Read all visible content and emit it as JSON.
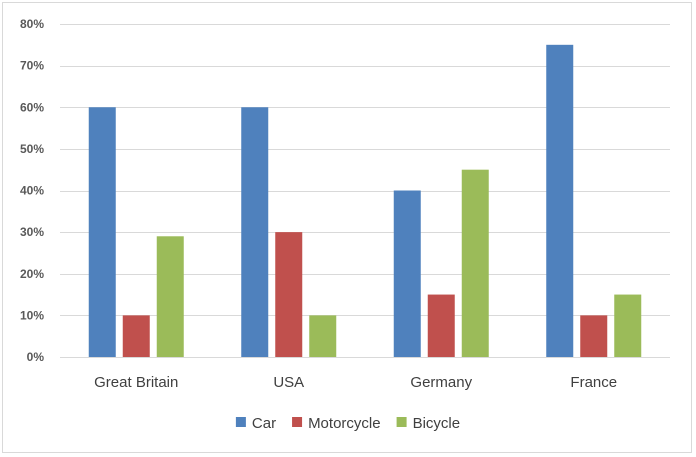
{
  "chart_data": {
    "type": "bar",
    "title": "",
    "xlabel": "",
    "ylabel": "",
    "ylim": [
      0,
      80
    ],
    "yticks": [
      0,
      10,
      20,
      30,
      40,
      50,
      60,
      70,
      80
    ],
    "ytick_labels": [
      "0%",
      "10%",
      "20%",
      "30%",
      "40%",
      "50%",
      "60%",
      "70%",
      "80%"
    ],
    "grid": true,
    "legend_position": "bottom",
    "categories": [
      "Great Britain",
      "USA",
      "Germany",
      "France"
    ],
    "series": [
      {
        "name": "Car",
        "color": "#4f81bd",
        "values": [
          60,
          60,
          40,
          75
        ]
      },
      {
        "name": "Motorcycle",
        "color": "#c0504d",
        "values": [
          10,
          30,
          15,
          10
        ]
      },
      {
        "name": "Bicycle",
        "color": "#9bbb59",
        "values": [
          29,
          10,
          45,
          15
        ]
      }
    ]
  }
}
